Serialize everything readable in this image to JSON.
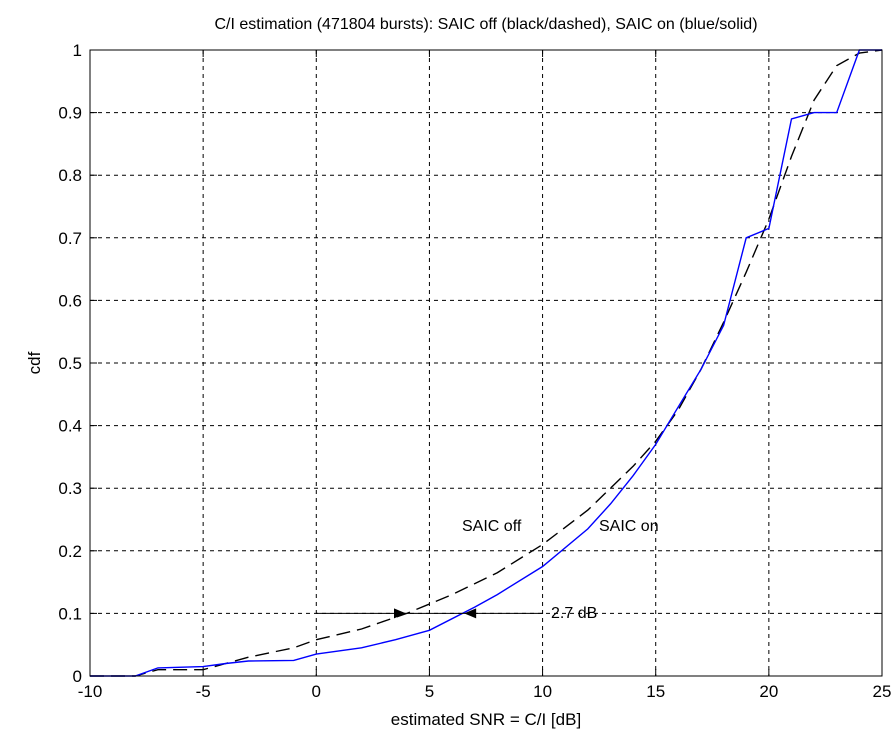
{
  "chart_data": {
    "type": "line",
    "title": "C/I estimation (471804 bursts): SAIC off (black/dashed), SAIC on (blue/solid)",
    "xlabel": "estimated SNR = C/I [dB]",
    "ylabel": "cdf",
    "xlim": [
      -10,
      25
    ],
    "ylim": [
      0,
      1
    ],
    "xticks": [
      -10,
      -5,
      0,
      5,
      10,
      15,
      20,
      25
    ],
    "yticks": [
      0,
      0.1,
      0.2,
      0.3,
      0.4,
      0.5,
      0.6,
      0.7,
      0.8,
      0.9,
      1
    ],
    "xtick_labels": [
      "-10",
      "-5",
      "0",
      "5",
      "10",
      "15",
      "20",
      "25"
    ],
    "ytick_labels": [
      "0",
      "0.1",
      "0.2",
      "0.3",
      "0.4",
      "0.5",
      "0.6",
      "0.7",
      "0.8",
      "0.9",
      "1"
    ],
    "grid": true,
    "series": [
      {
        "name": "SAIC off",
        "color": "#000000",
        "style": "dashed",
        "points": [
          [
            -10,
            0
          ],
          [
            -8,
            0
          ],
          [
            -7,
            0.01
          ],
          [
            -5,
            0.01
          ],
          [
            -4,
            0.02
          ],
          [
            -3,
            0.03
          ],
          [
            -1,
            0.045
          ],
          [
            0,
            0.058
          ],
          [
            2,
            0.075
          ],
          [
            4,
            0.1
          ],
          [
            6,
            0.13
          ],
          [
            8,
            0.165
          ],
          [
            10,
            0.21
          ],
          [
            12,
            0.265
          ],
          [
            14,
            0.335
          ],
          [
            15,
            0.375
          ],
          [
            16,
            0.425
          ],
          [
            17,
            0.49
          ],
          [
            18,
            0.565
          ],
          [
            19,
            0.645
          ],
          [
            20,
            0.73
          ],
          [
            21,
            0.83
          ],
          [
            22,
            0.92
          ],
          [
            23,
            0.975
          ],
          [
            24,
            0.995
          ],
          [
            25,
            1
          ]
        ]
      },
      {
        "name": "SAIC on",
        "color": "#0000ff",
        "style": "solid",
        "points": [
          [
            -10,
            0
          ],
          [
            -8,
            0
          ],
          [
            -7,
            0.013
          ],
          [
            -5,
            0.015
          ],
          [
            -4,
            0.02
          ],
          [
            -3,
            0.024
          ],
          [
            -1,
            0.025
          ],
          [
            0,
            0.035
          ],
          [
            2,
            0.045
          ],
          [
            3.5,
            0.058
          ],
          [
            5,
            0.073
          ],
          [
            7,
            0.11
          ],
          [
            8,
            0.13
          ],
          [
            10,
            0.175
          ],
          [
            12,
            0.235
          ],
          [
            13,
            0.275
          ],
          [
            14,
            0.32
          ],
          [
            15,
            0.37
          ],
          [
            16,
            0.43
          ],
          [
            17,
            0.49
          ],
          [
            18,
            0.56
          ],
          [
            19,
            0.7
          ],
          [
            20,
            0.715
          ],
          [
            21,
            0.89
          ],
          [
            22,
            0.9
          ],
          [
            23,
            0.9
          ],
          [
            24,
            1
          ],
          [
            25,
            1
          ]
        ]
      }
    ],
    "annotations": {
      "saic_off_label": "SAIC off",
      "saic_on_label": "SAIC on",
      "gain_label": "2.7 dB",
      "gain_line": {
        "y": 0.1,
        "x_start": 0,
        "x_end": 10,
        "arrow1_x": 3.7,
        "arrow2_x": 6.8
      }
    }
  }
}
